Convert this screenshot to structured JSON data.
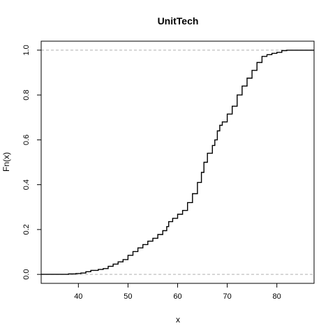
{
  "chart_data": {
    "type": "line",
    "title": "UnitTech",
    "xlabel": "x",
    "ylabel": "Fn(x)",
    "xlim": [
      32.5,
      87.5
    ],
    "ylim": [
      -0.04,
      1.04
    ],
    "x_ticks": [
      40,
      50,
      60,
      70,
      80
    ],
    "y_ticks": [
      0.0,
      0.2,
      0.4,
      0.6,
      0.8,
      1.0
    ],
    "y_tick_labels": [
      "0.0",
      "0.2",
      "0.4",
      "0.6",
      "0.8",
      "1.0"
    ],
    "reference_lines": [
      0,
      1
    ],
    "grid": false,
    "series": [
      {
        "step": true,
        "points": [
          [
            32.5,
            0.0
          ],
          [
            36,
            0.0
          ],
          [
            38,
            0.002
          ],
          [
            39.5,
            0.004
          ],
          [
            40.5,
            0.006
          ],
          [
            41.5,
            0.012
          ],
          [
            42.5,
            0.018
          ],
          [
            44,
            0.022
          ],
          [
            45,
            0.026
          ],
          [
            46,
            0.036
          ],
          [
            47,
            0.046
          ],
          [
            48,
            0.056
          ],
          [
            49,
            0.066
          ],
          [
            50,
            0.085
          ],
          [
            51,
            0.102
          ],
          [
            52,
            0.118
          ],
          [
            53,
            0.133
          ],
          [
            54,
            0.148
          ],
          [
            55,
            0.161
          ],
          [
            56,
            0.178
          ],
          [
            57,
            0.195
          ],
          [
            57.8,
            0.213
          ],
          [
            58.2,
            0.235
          ],
          [
            59,
            0.25
          ],
          [
            60,
            0.268
          ],
          [
            61,
            0.285
          ],
          [
            62,
            0.32
          ],
          [
            63,
            0.36
          ],
          [
            64,
            0.41
          ],
          [
            64.8,
            0.455
          ],
          [
            65.3,
            0.5
          ],
          [
            66,
            0.54
          ],
          [
            67,
            0.575
          ],
          [
            67.5,
            0.6
          ],
          [
            68,
            0.64
          ],
          [
            68.5,
            0.665
          ],
          [
            69,
            0.68
          ],
          [
            70,
            0.715
          ],
          [
            71,
            0.75
          ],
          [
            72,
            0.8
          ],
          [
            73,
            0.84
          ],
          [
            74,
            0.875
          ],
          [
            75,
            0.91
          ],
          [
            76,
            0.945
          ],
          [
            77,
            0.972
          ],
          [
            78,
            0.98
          ],
          [
            79,
            0.986
          ],
          [
            80,
            0.99
          ],
          [
            81,
            0.998
          ],
          [
            82,
            1.0
          ],
          [
            87.5,
            1.0
          ]
        ]
      }
    ]
  }
}
